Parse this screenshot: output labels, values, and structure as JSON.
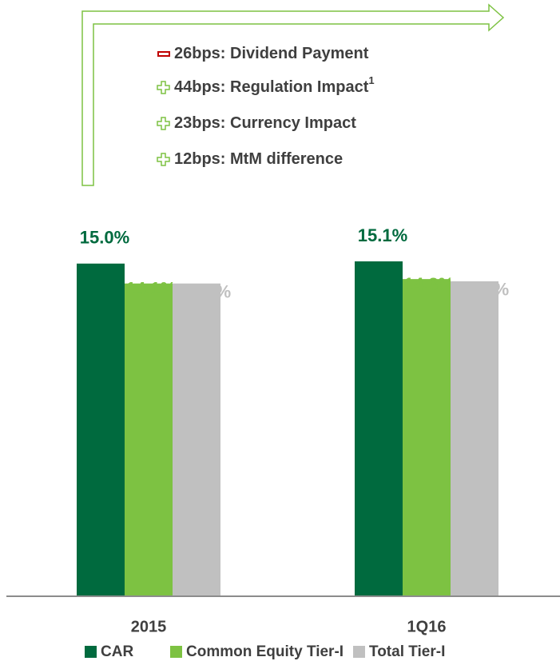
{
  "chart_data": {
    "type": "bar",
    "categories": [
      "2015",
      "1Q16"
    ],
    "series": [
      {
        "name": "CAR",
        "color": "#006a3e",
        "values": [
          15.0,
          15.1
        ],
        "value_labels": [
          "15.0%",
          "15.1%"
        ]
      },
      {
        "name": "Common Equity Tier-I",
        "color": "#7dc242",
        "values": [
          14.1,
          14.3
        ],
        "value_labels": [
          "14.1%",
          "14.3%"
        ]
      },
      {
        "name": "Total Tier-I",
        "color": "#c0c0c0",
        "values": [
          14.1,
          14.2
        ],
        "value_labels": [
          "14.1%",
          "14.2%"
        ]
      }
    ],
    "annotations": [
      {
        "sign": "minus",
        "text": "26bps: Dividend Payment"
      },
      {
        "sign": "plus",
        "text": "44bps: Regulation Impact",
        "superscript": "1"
      },
      {
        "sign": "plus",
        "text": "23bps: Currency Impact"
      },
      {
        "sign": "plus",
        "text": "12bps: MtM difference"
      }
    ]
  }
}
